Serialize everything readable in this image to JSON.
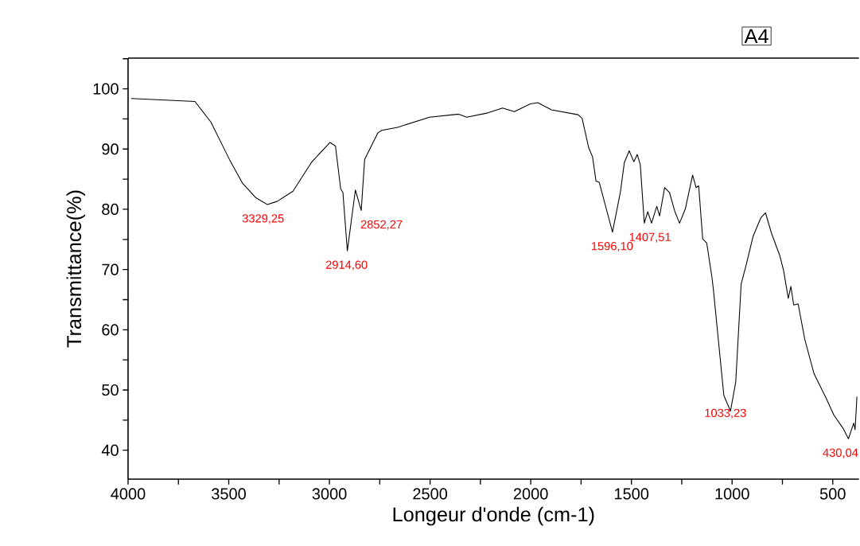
{
  "chart_data": {
    "type": "line",
    "xlabel": "Longeur d'onde (cm-1)",
    "ylabel": "Transmittance(%)",
    "xlim": [
      4000,
      370
    ],
    "ylim": [
      35.2,
      105.1
    ],
    "xticks": [
      4000,
      {
        "value": 3750,
        "label": null
      },
      3500,
      {
        "value": 3250,
        "label": null
      },
      3000,
      {
        "value": 2750,
        "label": null
      },
      2500,
      {
        "value": 2250,
        "label": null
      },
      2000,
      {
        "value": 1750,
        "label": null
      },
      1500,
      {
        "value": 1250,
        "label": null
      },
      1000,
      {
        "value": 750,
        "label": null
      },
      500
    ],
    "yticks": [
      40,
      {
        "value": 45,
        "label": null
      },
      50,
      {
        "value": 55,
        "label": null
      },
      60,
      {
        "value": 65,
        "label": null
      },
      70,
      {
        "value": 75,
        "label": null
      },
      80,
      {
        "value": 85,
        "label": null
      },
      90,
      {
        "value": 95,
        "label": null
      },
      100,
      {
        "value": 105,
        "label": null
      }
    ],
    "grid": false,
    "marker": "none",
    "line_style": "solid",
    "x": [
      3984,
      3668,
      3589,
      3497,
      3431,
      3365,
      3309,
      3260,
      3181,
      3089,
      2997,
      2970,
      2944,
      2933,
      2911,
      2871,
      2842,
      2825,
      2759,
      2740,
      2661,
      2503,
      2358,
      2318,
      2213,
      2140,
      2081,
      2002,
      1965,
      1897,
      1765,
      1745,
      1712,
      1693,
      1676,
      1660,
      1594,
      1554,
      1535,
      1511,
      1488,
      1471,
      1456,
      1436,
      1419,
      1400,
      1374,
      1360,
      1335,
      1311,
      1285,
      1261,
      1232,
      1196,
      1179,
      1166,
      1146,
      1126,
      1100,
      1093,
      1067,
      1041,
      1008,
      982,
      955,
      929,
      896,
      857,
      834,
      804,
      764,
      744,
      721,
      708,
      694,
      672,
      639,
      593,
      534,
      494,
      448,
      422,
      396,
      389,
      380
    ],
    "series": [
      {
        "color": "#000000",
        "values": [
          98.4,
          97.9,
          94.5,
          88.3,
          84.3,
          81.9,
          80.8,
          81.3,
          83.0,
          87.8,
          91.1,
          90.5,
          83.4,
          82.8,
          73.1,
          83.2,
          79.8,
          88.3,
          92.7,
          93.1,
          93.6,
          95.3,
          95.8,
          95.3,
          96.0,
          96.8,
          96.2,
          97.5,
          97.7,
          96.5,
          95.7,
          95.1,
          90.2,
          88.7,
          84.7,
          84.5,
          76.2,
          83.0,
          87.8,
          89.7,
          87.9,
          89.1,
          87.4,
          77.7,
          79.6,
          77.7,
          80.5,
          78.9,
          83.6,
          82.8,
          79.7,
          77.7,
          80.1,
          85.7,
          83.6,
          83.9,
          75.1,
          74.4,
          68.7,
          66.7,
          57.9,
          49.1,
          46.5,
          51.3,
          67.6,
          70.9,
          75.5,
          78.6,
          79.4,
          76.0,
          72.4,
          69.8,
          65.2,
          67.2,
          64.1,
          64.3,
          58.4,
          52.7,
          48.7,
          45.8,
          43.6,
          41.9,
          44.5,
          43.4,
          48.9
        ]
      }
    ],
    "annotations": [
      "A4",
      {
        "text": "3329,25",
        "x": 3329.25,
        "y": 80.8
      },
      {
        "text": "2914,60",
        "x": 2914.6,
        "y": 73.1
      },
      {
        "text": "2852,27",
        "x": 2852.27,
        "y": 79.8
      },
      {
        "text": "1596,10",
        "x": 1596.1,
        "y": 76.2
      },
      {
        "text": "1407,51",
        "x": 1407.51,
        "y": 77.7
      },
      {
        "text": "1033,23",
        "x": 1033.23,
        "y": 48.5
      },
      {
        "text": "430,04",
        "x": 430.04,
        "y": 41.9
      }
    ]
  }
}
